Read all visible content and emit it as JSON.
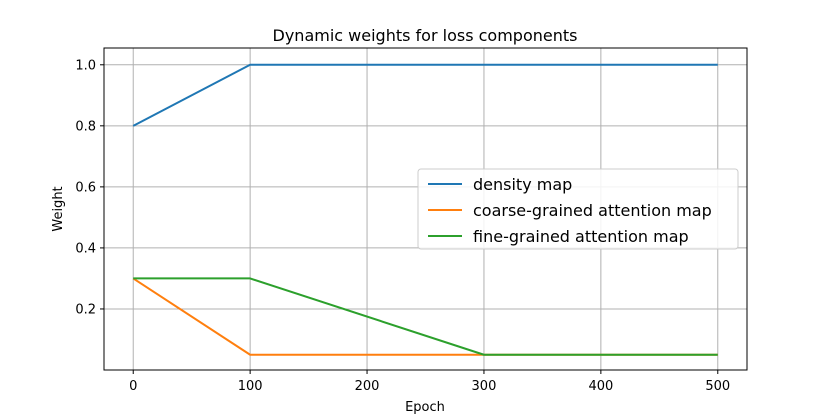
{
  "chart_data": {
    "type": "line",
    "title": "Dynamic weights for loss components",
    "xlabel": "Epoch",
    "ylabel": "Weight",
    "xlim": [
      -25,
      525
    ],
    "ylim": [
      0.0,
      1.055
    ],
    "xticks": [
      0,
      100,
      200,
      300,
      400,
      500
    ],
    "xtick_labels": [
      "0",
      "100",
      "200",
      "300",
      "400",
      "500"
    ],
    "yticks": [
      0.2,
      0.4,
      0.6,
      0.8,
      1.0
    ],
    "ytick_labels": [
      "0.2",
      "0.4",
      "0.6",
      "0.8",
      "1.0"
    ],
    "grid": true,
    "legend_position": "center-right",
    "series": [
      {
        "name": "density map",
        "color": "#1f77b4",
        "x": [
          0,
          100,
          500
        ],
        "y": [
          0.8,
          1.0,
          1.0
        ]
      },
      {
        "name": "coarse-grained attention map",
        "color": "#ff7f0e",
        "x": [
          0,
          100,
          300,
          500
        ],
        "y": [
          0.3,
          0.05,
          0.05,
          0.05
        ]
      },
      {
        "name": "fine-grained attention map",
        "color": "#2ca02c",
        "x": [
          0,
          100,
          300,
          500
        ],
        "y": [
          0.3,
          0.3,
          0.05,
          0.05
        ]
      }
    ]
  }
}
